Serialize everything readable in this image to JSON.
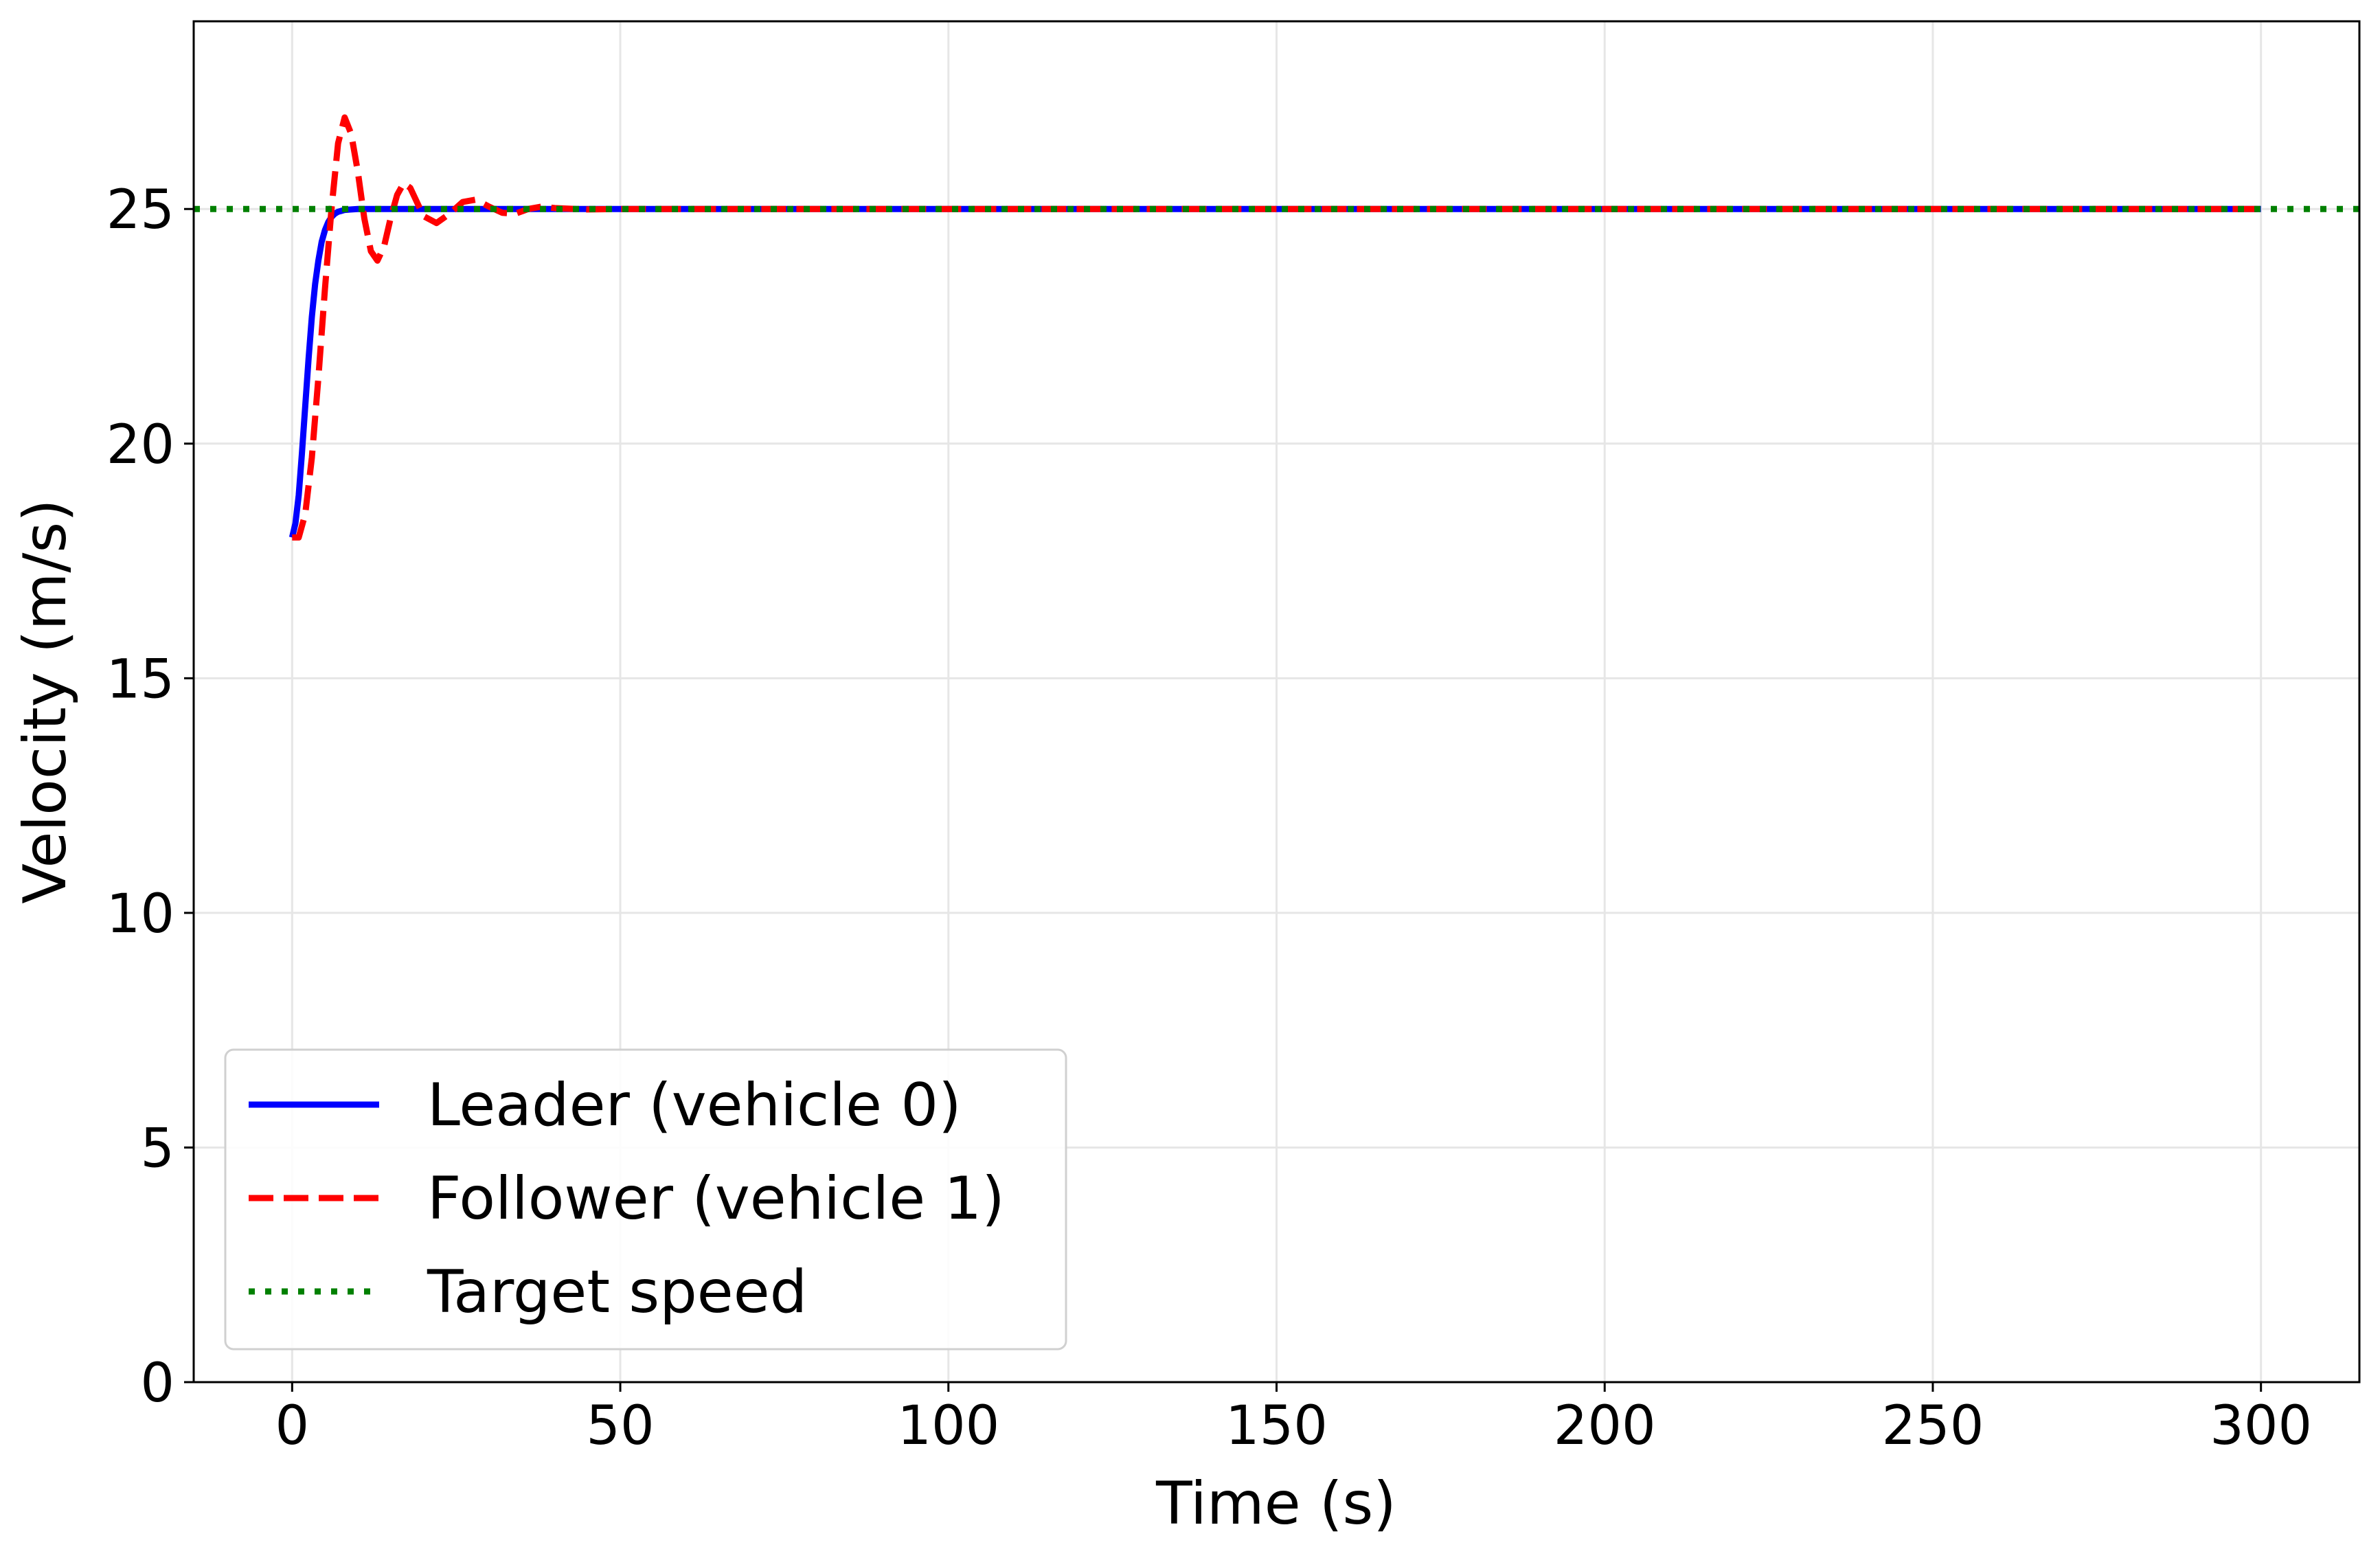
{
  "chart_data": {
    "type": "line",
    "title": "",
    "xlabel": "Time (s)",
    "ylabel": "Velocity (m/s)",
    "xlim": [
      -15,
      315
    ],
    "ylim": [
      0,
      29
    ],
    "xticks": [
      0,
      50,
      100,
      150,
      200,
      250,
      300
    ],
    "yticks": [
      0,
      5,
      10,
      15,
      20,
      25
    ],
    "grid": true,
    "legend_position": "lower-left",
    "series": [
      {
        "name": "Leader (vehicle 0)",
        "color": "#0000ff",
        "style": "solid",
        "x": [
          0,
          0.5,
          1,
          1.5,
          2,
          2.5,
          3,
          3.5,
          4,
          4.5,
          5,
          5.5,
          6,
          6.5,
          7,
          7.5,
          8,
          9,
          10,
          12,
          15,
          20,
          30,
          50,
          100,
          150,
          200,
          250,
          300
        ],
        "y": [
          18.0,
          18.3,
          18.9,
          19.8,
          20.8,
          21.8,
          22.7,
          23.4,
          23.9,
          24.3,
          24.55,
          24.72,
          24.83,
          24.9,
          24.94,
          24.96,
          24.98,
          24.99,
          25.0,
          25.0,
          25.0,
          25.0,
          25.0,
          25.0,
          25.0,
          25.0,
          25.0,
          25.0,
          25.0
        ]
      },
      {
        "name": "Follower (vehicle 1)",
        "color": "#ff0000",
        "style": "dashed",
        "x": [
          0,
          1,
          2,
          3,
          4,
          5,
          6,
          7,
          8,
          9,
          10,
          11,
          12,
          13,
          14,
          15,
          16,
          17,
          18,
          19,
          20,
          22,
          24,
          26,
          28,
          30,
          32,
          34,
          36,
          38,
          40,
          45,
          50,
          100,
          150,
          200,
          250,
          300
        ],
        "y": [
          18.0,
          18.0,
          18.5,
          19.7,
          21.4,
          23.3,
          25.0,
          26.4,
          26.95,
          26.6,
          25.8,
          24.8,
          24.1,
          23.9,
          24.2,
          24.8,
          25.3,
          25.55,
          25.45,
          25.15,
          24.85,
          24.7,
          24.9,
          25.15,
          25.2,
          25.05,
          24.92,
          24.9,
          25.0,
          25.05,
          25.02,
          24.99,
          25.0,
          25.0,
          25.0,
          25.0,
          25.0,
          25.0
        ]
      },
      {
        "name": "Target speed",
        "color": "#008000",
        "style": "dotted",
        "x": [
          -15,
          315
        ],
        "y": [
          25,
          25
        ]
      }
    ]
  }
}
